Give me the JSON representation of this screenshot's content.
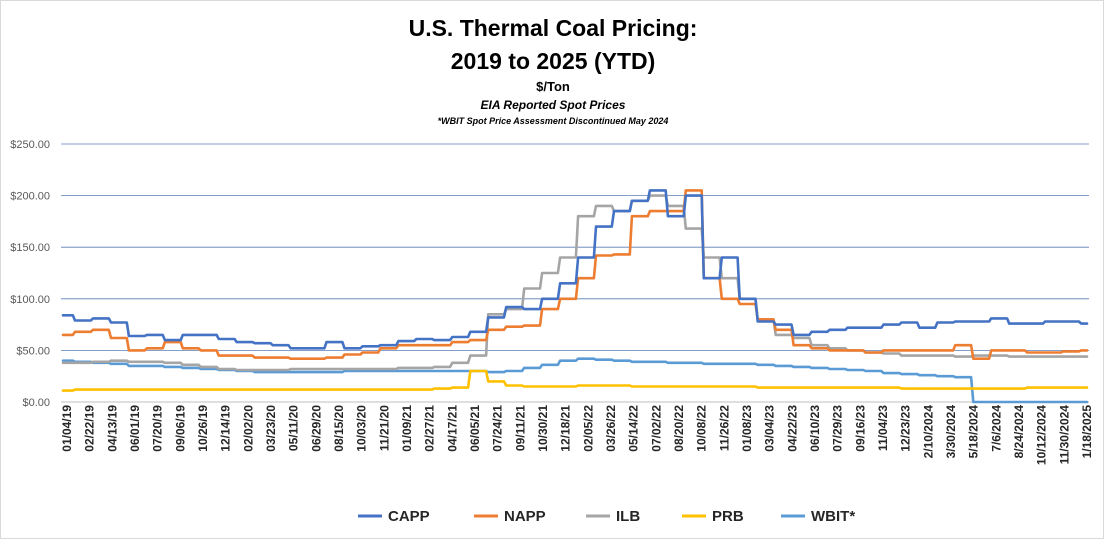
{
  "chart_data": {
    "type": "line",
    "title": "U.S. Thermal Coal Pricing:",
    "subtitle": "2019 to 2025 (YTD)",
    "unit_label": "$/Ton",
    "source_label": "EIA Reported Spot Prices",
    "note": "*WBIT Spot Price Assessment Discontinued May 2024",
    "ylim": [
      0,
      250
    ],
    "y_ticks": [
      "$0.00",
      "$50.00",
      "$100.00",
      "$150.00",
      "$200.00",
      "$250.00"
    ],
    "x_ticks": [
      "01/04/19",
      "02/22/19",
      "04/13/19",
      "06/01/19",
      "07/20/19",
      "09/06/19",
      "10/26/19",
      "12/14/19",
      "02/02/20",
      "03/23/20",
      "05/11/20",
      "06/29/20",
      "08/15/20",
      "10/03/20",
      "11/21/20",
      "01/09/21",
      "02/27/21",
      "04/17/21",
      "06/05/21",
      "07/24/21",
      "09/11/21",
      "10/30/21",
      "12/18/21",
      "02/05/22",
      "03/26/22",
      "05/14/22",
      "07/02/22",
      "08/20/22",
      "10/08/22",
      "11/26/22",
      "01/08/23",
      "03/04/23",
      "04/22/23",
      "06/10/23",
      "07/29/23",
      "09/16/23",
      "11/04/23",
      "12/23/23",
      "2/10/2024",
      "3/30/2024",
      "5/18/2024",
      "7/6/2024",
      "8/24/2024",
      "10/12/2024",
      "11/30/2024",
      "1/18/2025"
    ],
    "grid": true,
    "legend_position": "bottom",
    "series": [
      {
        "name": "CAPP",
        "color": "#4472c4",
        "values": [
          84,
          79,
          81,
          77,
          64,
          65,
          60,
          65,
          65,
          61,
          58,
          57,
          55,
          52,
          52,
          58,
          52,
          54,
          55,
          59,
          61,
          60,
          63,
          68,
          82,
          92,
          90,
          100,
          115,
          140,
          170,
          185,
          195,
          205,
          180,
          200,
          120,
          140,
          100,
          78,
          75,
          65,
          68,
          70,
          72,
          72,
          75,
          77,
          72,
          77,
          78,
          78,
          81,
          76,
          76,
          78,
          78,
          76
        ]
      },
      {
        "name": "NAPP",
        "color": "#ed7d31",
        "values": [
          65,
          68,
          70,
          62,
          50,
          52,
          58,
          52,
          50,
          45,
          45,
          43,
          43,
          42,
          42,
          43,
          46,
          48,
          52,
          55,
          55,
          55,
          58,
          60,
          70,
          73,
          74,
          90,
          100,
          120,
          142,
          143,
          180,
          185,
          185,
          205,
          120,
          100,
          95,
          80,
          70,
          55,
          52,
          50,
          50,
          48,
          50,
          50,
          50,
          50,
          55,
          42,
          50,
          50,
          48,
          48,
          49,
          50
        ]
      },
      {
        "name": "ILB",
        "color": "#a5a5a5",
        "values": [
          38,
          38,
          39,
          40,
          39,
          39,
          38,
          36,
          34,
          32,
          31,
          31,
          31,
          32,
          32,
          32,
          32,
          32,
          32,
          33,
          33,
          34,
          38,
          45,
          85,
          90,
          110,
          125,
          140,
          180,
          190,
          185,
          195,
          200,
          190,
          168,
          140,
          120,
          100,
          80,
          65,
          62,
          55,
          52,
          50,
          48,
          47,
          45,
          45,
          45,
          44,
          45,
          45,
          44,
          44,
          44,
          44,
          44
        ]
      },
      {
        "name": "PRB",
        "color": "#ffc000",
        "values": [
          11,
          12,
          12,
          12,
          12,
          12,
          12,
          12,
          12,
          12,
          12,
          12,
          12,
          12,
          12,
          12,
          12,
          12,
          12,
          12,
          12,
          13,
          14,
          30,
          20,
          16,
          15,
          15,
          15,
          16,
          16,
          16,
          15,
          15,
          15,
          15,
          15,
          15,
          15,
          14,
          14,
          14,
          14,
          14,
          14,
          14,
          14,
          13,
          13,
          13,
          13,
          13,
          13,
          13,
          14,
          14,
          14,
          14
        ]
      },
      {
        "name": "WBIT*",
        "color": "#5b9bd5",
        "values": [
          40,
          39,
          38,
          37,
          35,
          35,
          34,
          33,
          32,
          31,
          30,
          29,
          29,
          29,
          29,
          29,
          30,
          30,
          30,
          30,
          30,
          30,
          30,
          30,
          29,
          30,
          33,
          36,
          40,
          42,
          41,
          40,
          39,
          39,
          38,
          38,
          37,
          37,
          37,
          36,
          35,
          34,
          33,
          32,
          31,
          30,
          28,
          27,
          26,
          25,
          24,
          0,
          0,
          0,
          0,
          0,
          0,
          0
        ]
      }
    ]
  }
}
